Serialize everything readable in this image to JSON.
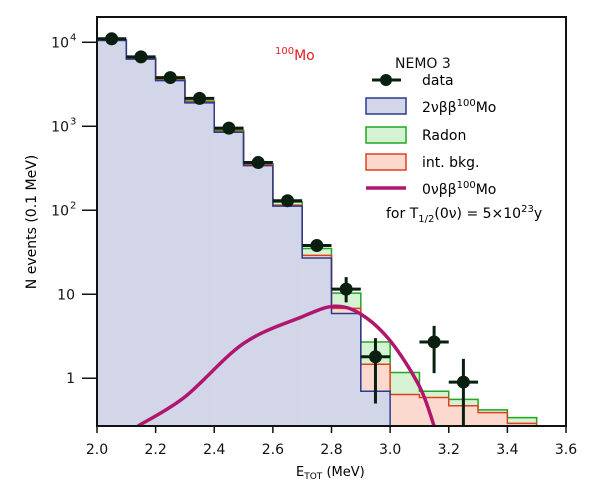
{
  "chart_data": {
    "type": "bar",
    "title": "NEMO 3",
    "annotation": "Mo",
    "annotation_sup": "100",
    "xlabel": "E",
    "xlabel_sub": "TOT",
    "xlabel_unit": " (MeV)",
    "ylabel": "N events (0.1 MeV)",
    "xlim": [
      2.0,
      3.6
    ],
    "ylim": [
      0.27,
      20000
    ],
    "yscale": "log",
    "xticks": [
      "2.0",
      "2.2",
      "2.4",
      "2.6",
      "2.8",
      "3.0",
      "3.2",
      "3.4",
      "3.6"
    ],
    "yticks": [
      {
        "value": 1,
        "base": "1",
        "exp": ""
      },
      {
        "value": 10,
        "base": "10",
        "exp": ""
      },
      {
        "value": 100,
        "base": "10",
        "exp": "2"
      },
      {
        "value": 1000,
        "base": "10",
        "exp": "3"
      },
      {
        "value": 10000,
        "base": "10",
        "exp": "4"
      }
    ],
    "bin_edges_start": 2.0,
    "bin_width": 0.1,
    "stacked_series": [
      {
        "name": "2νββ",
        "name_sup": "100",
        "name_suffix": "Mo",
        "color": "#2b3a8f",
        "fill": "#d3d6e8",
        "values": [
          10500,
          6300,
          3500,
          1900,
          850,
          340,
          112,
          27,
          5.9,
          0.7,
          0,
          0,
          0,
          0,
          0,
          0
        ]
      },
      {
        "name": "int. bkg.",
        "color": "#e0401c",
        "fill": "#fcd9cf",
        "values": [
          100,
          100,
          50,
          50,
          20,
          10,
          3,
          2,
          0.9,
          0.77,
          0.64,
          0.59,
          0.47,
          0.39,
          0.29,
          0
        ]
      },
      {
        "name": "Radon",
        "color": "#1fa81f",
        "fill": "#d5f2d2",
        "values": [
          100,
          100,
          150,
          50,
          30,
          10,
          10,
          6,
          3.5,
          1.23,
          0.53,
          0.11,
          0.09,
          0.03,
          0.05,
          0
        ]
      }
    ],
    "data_points": {
      "name": "data",
      "color": "#0a1f0f",
      "x": [
        2.05,
        2.15,
        2.25,
        2.35,
        2.45,
        2.55,
        2.65,
        2.75,
        2.85,
        2.95,
        3.15,
        3.25
      ],
      "y": [
        11000,
        6700,
        3800,
        2150,
        950,
        370,
        130,
        38,
        11.5,
        1.8,
        2.7,
        0.9
      ],
      "err_low": [
        null,
        null,
        null,
        null,
        null,
        null,
        null,
        null,
        8,
        0.5,
        1.15,
        0.27
      ],
      "err_high": [
        null,
        null,
        null,
        null,
        null,
        null,
        null,
        null,
        16,
        3.0,
        4.2,
        1.7
      ],
      "x_half_width": 0.05
    },
    "signal_curve": {
      "name": "0νββ",
      "name_sup": "100",
      "name_suffix": "Mo",
      "color": "#b0166e",
      "note_prefix": "for T",
      "note_sub": "1/2",
      "note_mid": "(0ν) = 5×10",
      "note_sup": "23",
      "note_suffix": "y",
      "x": [
        2.14,
        2.3,
        2.5,
        2.7,
        2.81,
        2.9,
        3.0,
        3.1,
        3.15
      ],
      "y": [
        0.27,
        0.6,
        2.6,
        5.4,
        7.2,
        5.8,
        2.8,
        0.8,
        0.27
      ]
    },
    "legend_placement": "top-right",
    "grid": false
  }
}
